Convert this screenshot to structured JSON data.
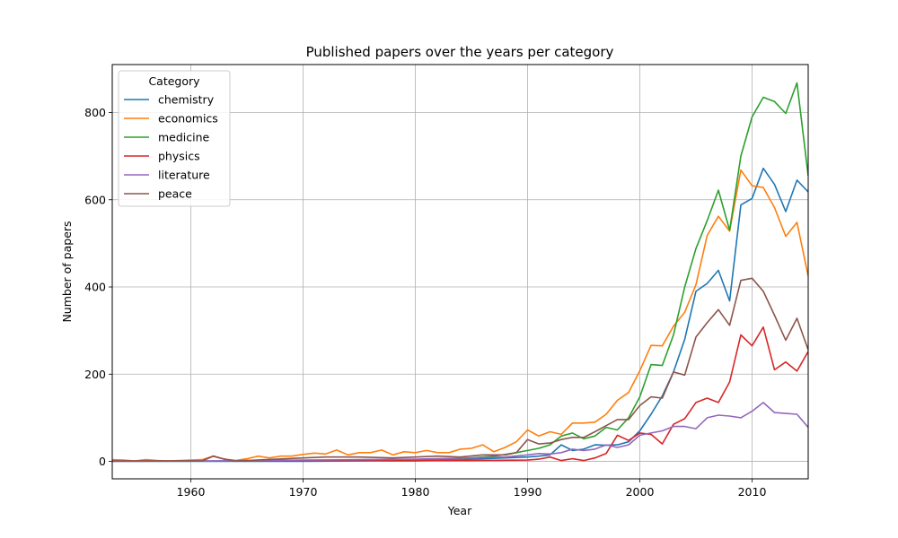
{
  "chart_data": {
    "type": "line",
    "title": "Published papers over the years per category",
    "xlabel": "Year",
    "ylabel": "Number of papers",
    "xlim": [
      1953,
      2015
    ],
    "ylim": [
      -40,
      910
    ],
    "xticks": [
      1960,
      1970,
      1980,
      1990,
      2000,
      2010
    ],
    "yticks": [
      0,
      200,
      400,
      600,
      800
    ],
    "grid": true,
    "legend": {
      "title": "Category",
      "placement": "top-left"
    },
    "series": [
      {
        "name": "chemistry",
        "color": "#1f77b4",
        "x": [
          1953,
          1958,
          1962,
          1970,
          1975,
          1980,
          1985,
          1988,
          1990,
          1991,
          1992,
          1993,
          1994,
          1995,
          1996,
          1997,
          1998,
          1999,
          2000,
          2001,
          2002,
          2003,
          2004,
          2005,
          2006,
          2007,
          2008,
          2009,
          2010,
          2011,
          2012,
          2013,
          2014,
          2015
        ],
        "values": [
          0,
          0,
          0,
          0,
          1,
          2,
          5,
          8,
          10,
          12,
          15,
          38,
          25,
          28,
          38,
          37,
          38,
          45,
          70,
          108,
          150,
          205,
          280,
          390,
          408,
          438,
          368,
          588,
          603,
          672,
          635,
          573,
          645,
          618
        ]
      },
      {
        "name": "economics",
        "color": "#ff7f0e",
        "x": [
          1953,
          1954,
          1955,
          1956,
          1957,
          1958,
          1959,
          1960,
          1961,
          1962,
          1963,
          1964,
          1965,
          1966,
          1967,
          1968,
          1969,
          1970,
          1971,
          1972,
          1973,
          1974,
          1975,
          1976,
          1977,
          1978,
          1979,
          1980,
          1981,
          1982,
          1983,
          1984,
          1985,
          1986,
          1987,
          1988,
          1989,
          1990,
          1991,
          1992,
          1993,
          1994,
          1995,
          1996,
          1997,
          1998,
          1999,
          2000,
          2001,
          2002,
          2003,
          2004,
          2005,
          2006,
          2007,
          2008,
          2009,
          2010,
          2011,
          2012,
          2013,
          2014,
          2015
        ],
        "values": [
          4,
          3,
          1,
          4,
          2,
          1,
          2,
          3,
          4,
          12,
          5,
          2,
          6,
          12,
          8,
          12,
          12,
          16,
          19,
          17,
          26,
          15,
          20,
          20,
          26,
          15,
          22,
          20,
          25,
          20,
          20,
          28,
          30,
          38,
          22,
          32,
          45,
          72,
          58,
          68,
          62,
          88,
          88,
          90,
          108,
          140,
          158,
          208,
          266,
          265,
          310,
          342,
          405,
          518,
          562,
          528,
          668,
          632,
          628,
          582,
          516,
          548,
          425
        ]
      },
      {
        "name": "medicine",
        "color": "#2ca02c",
        "x": [
          1977,
          1978,
          1979,
          1980,
          1981,
          1982,
          1983,
          1984,
          1985,
          1986,
          1987,
          1988,
          1989,
          1990,
          1991,
          1992,
          1993,
          1994,
          1995,
          1996,
          1997,
          1998,
          1999,
          2000,
          2001,
          2002,
          2003,
          2004,
          2005,
          2006,
          2007,
          2008,
          2009,
          2010,
          2011,
          2012,
          2013,
          2014,
          2015
        ],
        "values": [
          1,
          1,
          1,
          1,
          2,
          3,
          4,
          5,
          8,
          10,
          12,
          16,
          20,
          25,
          30,
          38,
          58,
          65,
          52,
          58,
          78,
          72,
          100,
          148,
          222,
          220,
          290,
          400,
          488,
          552,
          622,
          530,
          700,
          790,
          835,
          825,
          798,
          868,
          655
        ]
      },
      {
        "name": "physics",
        "color": "#d62728",
        "x": [
          1953,
          1960,
          1961,
          1962,
          1963,
          1964,
          1970,
          1975,
          1980,
          1985,
          1990,
          1991,
          1992,
          1993,
          1994,
          1995,
          1996,
          1997,
          1998,
          1999,
          2000,
          2001,
          2002,
          2003,
          2004,
          2005,
          2006,
          2007,
          2008,
          2009,
          2010,
          2011,
          2012,
          2013,
          2014,
          2015
        ],
        "values": [
          1,
          1,
          1,
          12,
          5,
          1,
          2,
          3,
          2,
          2,
          3,
          5,
          10,
          2,
          6,
          2,
          8,
          18,
          60,
          48,
          65,
          62,
          40,
          85,
          98,
          135,
          145,
          135,
          182,
          290,
          265,
          308,
          210,
          228,
          207,
          252
        ]
      },
      {
        "name": "literature",
        "color": "#9467bd",
        "x": [
          1953,
          1960,
          1965,
          1970,
          1975,
          1980,
          1985,
          1988,
          1990,
          1991,
          1992,
          1993,
          1994,
          1995,
          1996,
          1997,
          1998,
          1999,
          2000,
          2001,
          2002,
          2003,
          2004,
          2005,
          2006,
          2007,
          2008,
          2009,
          2010,
          2011,
          2012,
          2013,
          2014,
          2015
        ],
        "values": [
          0,
          1,
          2,
          3,
          4,
          5,
          8,
          10,
          15,
          18,
          17,
          20,
          28,
          25,
          28,
          38,
          32,
          38,
          60,
          65,
          70,
          80,
          80,
          75,
          100,
          106,
          104,
          100,
          115,
          135,
          112,
          110,
          108,
          78
        ]
      },
      {
        "name": "peace",
        "color": "#8c564b",
        "x": [
          1953,
          1956,
          1958,
          1960,
          1961,
          1962,
          1963,
          1964,
          1965,
          1970,
          1972,
          1975,
          1978,
          1980,
          1982,
          1984,
          1986,
          1988,
          1989,
          1990,
          1991,
          1992,
          1993,
          1994,
          1995,
          1996,
          1997,
          1998,
          1999,
          2000,
          2001,
          2002,
          2003,
          2004,
          2005,
          2006,
          2007,
          2008,
          2009,
          2010,
          2011,
          2012,
          2013,
          2014,
          2015
        ],
        "values": [
          1,
          1,
          1,
          1,
          1,
          12,
          5,
          1,
          2,
          8,
          10,
          10,
          8,
          10,
          12,
          10,
          15,
          15,
          20,
          50,
          40,
          42,
          50,
          55,
          55,
          68,
          82,
          96,
          96,
          128,
          148,
          145,
          205,
          198,
          285,
          318,
          348,
          312,
          415,
          420,
          390,
          335,
          278,
          328,
          256
        ]
      }
    ]
  }
}
